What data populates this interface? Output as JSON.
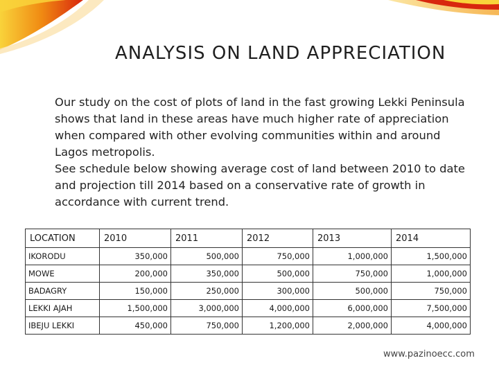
{
  "slide": {
    "title": "ANALYSIS ON LAND APPRECIATION",
    "intro_paragraphs": [
      "Our study on the cost of plots of land in the fast growing Lekki Peninsula shows that land in these areas have  much higher rate of appreciation when compared with other evolving communities within and around Lagos metropolis.",
      "See schedule below showing average cost of land between 2010 to date and projection till 2014 based on a conservative rate of growth in accordance with current trend."
    ],
    "footer": "www.pazinoecc.com"
  },
  "table": {
    "headers": [
      "LOCATION",
      "2010",
      "2011",
      "2012",
      "2013",
      "2014"
    ],
    "rows": [
      [
        "IKORODU",
        "350,000",
        "500,000",
        "750,000",
        "1,000,000",
        "1,500,000"
      ],
      [
        "MOWE",
        "200,000",
        "350,000",
        "500,000",
        "750,000",
        "1,000,000"
      ],
      [
        "BADAGRY",
        "150,000",
        "250,000",
        "300,000",
        "500,000",
        "750,000"
      ],
      [
        "LEKKI AJAH",
        "1,500,000",
        "3,000,000",
        "4,000,000",
        "6,000,000",
        "7,500,000"
      ],
      [
        "IBEJU LEKKI",
        "450,000",
        "750,000",
        "1,200,000",
        "2,000,000",
        "4,000,000"
      ]
    ]
  },
  "colors": {
    "swoosh_orange": "#f08a12",
    "swoosh_red": "#d8260e",
    "swoosh_yellow": "#f7c516"
  }
}
